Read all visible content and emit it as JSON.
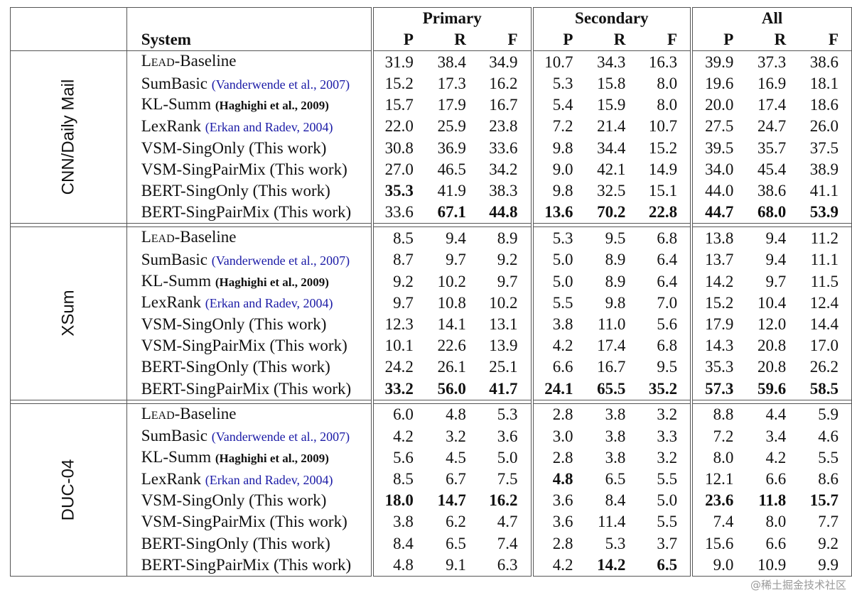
{
  "header": {
    "system_label": "System",
    "groups": [
      "Primary",
      "Secondary",
      "All"
    ],
    "metrics": [
      "P",
      "R",
      "F"
    ]
  },
  "datasets": [
    {
      "name": "CNN/Daily Mail",
      "rows": [
        {
          "system": "LEAD-Baseline",
          "note": "",
          "values": [
            "31.9",
            "38.4",
            "34.9",
            "10.7",
            "34.3",
            "16.3",
            "39.9",
            "37.3",
            "38.6"
          ],
          "bold": []
        },
        {
          "system": "SumBasic",
          "note": "(Vanderwende et al., 2007)",
          "values": [
            "15.2",
            "17.3",
            "16.2",
            "5.3",
            "15.8",
            "8.0",
            "19.6",
            "16.9",
            "18.1"
          ],
          "bold": []
        },
        {
          "system": "KL-Summ",
          "note": "(Haghighi et al., 2009)",
          "values": [
            "15.7",
            "17.9",
            "16.7",
            "5.4",
            "15.9",
            "8.0",
            "20.0",
            "17.4",
            "18.6"
          ],
          "bold": []
        },
        {
          "system": "LexRank",
          "note": "(Erkan and Radev, 2004)",
          "values": [
            "22.0",
            "25.9",
            "23.8",
            "7.2",
            "21.4",
            "10.7",
            "27.5",
            "24.7",
            "26.0"
          ],
          "bold": []
        },
        {
          "system": "VSM-SingOnly (This work)",
          "note": "",
          "values": [
            "30.8",
            "36.9",
            "33.6",
            "9.8",
            "34.4",
            "15.2",
            "39.5",
            "35.7",
            "37.5"
          ],
          "bold": []
        },
        {
          "system": "VSM-SingPairMix (This work)",
          "note": "",
          "values": [
            "27.0",
            "46.5",
            "34.2",
            "9.0",
            "42.1",
            "14.9",
            "34.0",
            "45.4",
            "38.9"
          ],
          "bold": []
        },
        {
          "system": "BERT-SingOnly (This work)",
          "note": "",
          "values": [
            "35.3",
            "41.9",
            "38.3",
            "9.8",
            "32.5",
            "15.1",
            "44.0",
            "38.6",
            "41.1"
          ],
          "bold": [
            0
          ]
        },
        {
          "system": "BERT-SingPairMix (This work)",
          "note": "",
          "values": [
            "33.6",
            "67.1",
            "44.8",
            "13.6",
            "70.2",
            "22.8",
            "44.7",
            "68.0",
            "53.9"
          ],
          "bold": [
            1,
            2,
            3,
            4,
            5,
            6,
            7,
            8
          ]
        }
      ]
    },
    {
      "name": "XSum",
      "rows": [
        {
          "system": "LEAD-Baseline",
          "note": "",
          "values": [
            "8.5",
            "9.4",
            "8.9",
            "5.3",
            "9.5",
            "6.8",
            "13.8",
            "9.4",
            "11.2"
          ],
          "bold": []
        },
        {
          "system": "SumBasic",
          "note": "(Vanderwende et al., 2007)",
          "values": [
            "8.7",
            "9.7",
            "9.2",
            "5.0",
            "8.9",
            "6.4",
            "13.7",
            "9.4",
            "11.1"
          ],
          "bold": []
        },
        {
          "system": "KL-Summ",
          "note": "(Haghighi et al., 2009)",
          "values": [
            "9.2",
            "10.2",
            "9.7",
            "5.0",
            "8.9",
            "6.4",
            "14.2",
            "9.7",
            "11.5"
          ],
          "bold": []
        },
        {
          "system": "LexRank",
          "note": "(Erkan and Radev, 2004)",
          "values": [
            "9.7",
            "10.8",
            "10.2",
            "5.5",
            "9.8",
            "7.0",
            "15.2",
            "10.4",
            "12.4"
          ],
          "bold": []
        },
        {
          "system": "VSM-SingOnly (This work)",
          "note": "",
          "values": [
            "12.3",
            "14.1",
            "13.1",
            "3.8",
            "11.0",
            "5.6",
            "17.9",
            "12.0",
            "14.4"
          ],
          "bold": []
        },
        {
          "system": "VSM-SingPairMix (This work)",
          "note": "",
          "values": [
            "10.1",
            "22.6",
            "13.9",
            "4.2",
            "17.4",
            "6.8",
            "14.3",
            "20.8",
            "17.0"
          ],
          "bold": []
        },
        {
          "system": "BERT-SingOnly (This work)",
          "note": "",
          "values": [
            "24.2",
            "26.1",
            "25.1",
            "6.6",
            "16.7",
            "9.5",
            "35.3",
            "20.8",
            "26.2"
          ],
          "bold": []
        },
        {
          "system": "BERT-SingPairMix (This work)",
          "note": "",
          "values": [
            "33.2",
            "56.0",
            "41.7",
            "24.1",
            "65.5",
            "35.2",
            "57.3",
            "59.6",
            "58.5"
          ],
          "bold": [
            0,
            1,
            2,
            3,
            4,
            5,
            6,
            7,
            8
          ]
        }
      ]
    },
    {
      "name": "DUC-04",
      "rows": [
        {
          "system": "LEAD-Baseline",
          "note": "",
          "values": [
            "6.0",
            "4.8",
            "5.3",
            "2.8",
            "3.8",
            "3.2",
            "8.8",
            "4.4",
            "5.9"
          ],
          "bold": []
        },
        {
          "system": "SumBasic",
          "note": "(Vanderwende et al., 2007)",
          "values": [
            "4.2",
            "3.2",
            "3.6",
            "3.0",
            "3.8",
            "3.3",
            "7.2",
            "3.4",
            "4.6"
          ],
          "bold": []
        },
        {
          "system": "KL-Summ",
          "note": "(Haghighi et al., 2009)",
          "values": [
            "5.6",
            "4.5",
            "5.0",
            "2.8",
            "3.8",
            "3.2",
            "8.0",
            "4.2",
            "5.5"
          ],
          "bold": []
        },
        {
          "system": "LexRank",
          "note": "(Erkan and Radev, 2004)",
          "values": [
            "8.5",
            "6.7",
            "7.5",
            "4.8",
            "6.5",
            "5.5",
            "12.1",
            "6.6",
            "8.6"
          ],
          "bold": [
            3
          ]
        },
        {
          "system": "VSM-SingOnly (This work)",
          "note": "",
          "values": [
            "18.0",
            "14.7",
            "16.2",
            "3.6",
            "8.4",
            "5.0",
            "23.6",
            "11.8",
            "15.7"
          ],
          "bold": [
            0,
            1,
            2,
            6,
            7,
            8
          ]
        },
        {
          "system": "VSM-SingPairMix (This work)",
          "note": "",
          "values": [
            "3.8",
            "6.2",
            "4.7",
            "3.6",
            "11.4",
            "5.5",
            "7.4",
            "8.0",
            "7.7"
          ],
          "bold": []
        },
        {
          "system": "BERT-SingOnly (This work)",
          "note": "",
          "values": [
            "8.4",
            "6.5",
            "7.4",
            "2.8",
            "5.3",
            "3.7",
            "15.6",
            "6.6",
            "9.2"
          ],
          "bold": []
        },
        {
          "system": "BERT-SingPairMix (This work)",
          "note": "",
          "values": [
            "4.8",
            "9.1",
            "6.3",
            "4.2",
            "14.2",
            "6.5",
            "9.0",
            "10.9",
            "9.9"
          ],
          "bold": [
            4,
            5
          ]
        }
      ]
    }
  ],
  "watermark": "@稀土掘金技术社区"
}
